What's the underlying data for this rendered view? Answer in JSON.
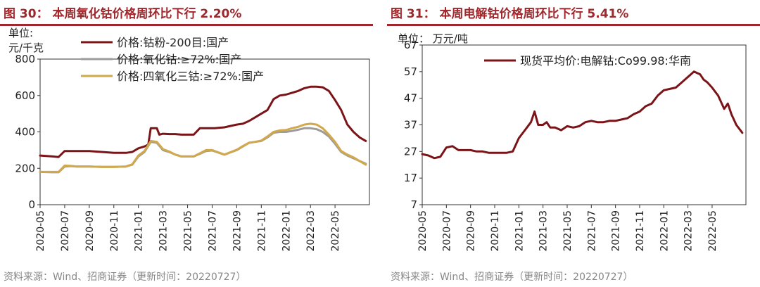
{
  "charts": [
    {
      "title": "图 30：  本周氧化钴价格周环比下行 2.20%",
      "source": "资料来源：Wind、招商证券（更新时间：20220727）"
    },
    {
      "title": "图 31：  本周电解钴价格周环比下行 5.41%",
      "source": "资料来源：Wind、招商证券（更新时间：20220727）"
    }
  ],
  "chart_data": [
    {
      "type": "line",
      "ylabel": "单位:\n元/千克",
      "ylim": [
        0,
        800
      ],
      "yticks": [
        0,
        200,
        400,
        600,
        800
      ],
      "x_tick_labels": [
        "2020-05",
        "2020-07",
        "2020-09",
        "2020-11",
        "2021-01",
        "2021-03",
        "2021-05",
        "2021-07",
        "2021-09",
        "2021-11",
        "2022-01",
        "2022-03",
        "2022-05"
      ],
      "xlim_months": [
        0,
        26.8
      ],
      "legend_position": "top-left",
      "colors": [
        "#7b1418",
        "#9c9c9c",
        "#d1a84a"
      ],
      "series": [
        {
          "name": "价格:钴粉-200目:国产",
          "x": [
            0,
            1,
            1.5,
            2,
            2.5,
            3,
            4,
            5,
            6,
            7,
            7.5,
            8,
            8.5,
            8.8,
            9,
            9.5,
            9.7,
            10,
            10.5,
            11,
            11.5,
            12,
            12.5,
            13,
            13.5,
            14,
            14.2,
            15,
            16,
            16.5,
            17,
            17.5,
            18,
            18.5,
            19,
            19.5,
            20,
            20.5,
            21,
            21.5,
            22,
            22.5,
            23,
            23.5,
            24,
            24.5,
            25,
            25.5,
            26,
            26.5
          ],
          "values": [
            270,
            265,
            262,
            295,
            295,
            295,
            295,
            290,
            285,
            285,
            290,
            310,
            320,
            330,
            420,
            420,
            385,
            390,
            388,
            388,
            385,
            385,
            385,
            420,
            420,
            420,
            420,
            425,
            440,
            445,
            460,
            480,
            500,
            520,
            580,
            600,
            605,
            615,
            625,
            640,
            648,
            648,
            645,
            625,
            575,
            520,
            440,
            400,
            370,
            350
          ]
        },
        {
          "name": "价格:氧化钴:≥72%:国产",
          "x": [
            0,
            1,
            1.5,
            2,
            2.5,
            3,
            4,
            5,
            6,
            7,
            7.5,
            8,
            8.5,
            9,
            9.5,
            10,
            10.5,
            11,
            11.5,
            12,
            12.5,
            13,
            13.5,
            14,
            15,
            16,
            16.5,
            17,
            17.5,
            18,
            18.5,
            19,
            19.5,
            20,
            20.5,
            21,
            21.5,
            22,
            22.5,
            23,
            23.5,
            24,
            24.5,
            25,
            25.5,
            26,
            26.5
          ],
          "values": [
            180,
            178,
            178,
            210,
            212,
            210,
            210,
            208,
            208,
            210,
            220,
            265,
            290,
            345,
            340,
            300,
            290,
            275,
            265,
            265,
            265,
            280,
            295,
            298,
            275,
            300,
            320,
            340,
            345,
            350,
            370,
            395,
            400,
            400,
            405,
            412,
            420,
            420,
            415,
            400,
            375,
            335,
            290,
            270,
            255,
            240,
            225
          ]
        },
        {
          "name": "价格:四氧化三钴:≥72%:国产",
          "x": [
            0,
            1,
            1.5,
            2,
            2.5,
            3,
            4,
            5,
            6,
            7,
            7.5,
            8,
            8.5,
            9,
            9.5,
            10,
            10.5,
            11,
            11.5,
            12,
            12.5,
            13,
            13.5,
            14,
            15,
            16,
            16.5,
            17,
            17.5,
            18,
            18.5,
            19,
            19.5,
            20,
            20.5,
            21,
            21.5,
            22,
            22.5,
            23,
            23.5,
            24,
            24.5,
            25,
            25.5,
            26,
            26.5
          ],
          "values": [
            180,
            180,
            180,
            215,
            213,
            210,
            210,
            208,
            208,
            210,
            222,
            270,
            295,
            350,
            345,
            305,
            292,
            275,
            265,
            265,
            265,
            282,
            300,
            300,
            275,
            302,
            322,
            340,
            345,
            352,
            375,
            400,
            408,
            410,
            420,
            428,
            440,
            445,
            440,
            420,
            385,
            345,
            295,
            275,
            260,
            240,
            220
          ]
        }
      ]
    },
    {
      "type": "line",
      "ylabel": "单位： 万元/吨",
      "ylim": [
        7,
        67
      ],
      "yticks": [
        7,
        17,
        27,
        37,
        47,
        57,
        67
      ],
      "x_tick_labels": [
        "2020-05",
        "2020-07",
        "2020-09",
        "2020-11",
        "2021-01",
        "2021-03",
        "2021-05",
        "2021-07",
        "2021-09",
        "2021-11",
        "2022-01",
        "2022-03",
        "2022-05"
      ],
      "xlim_months": [
        0,
        26.8
      ],
      "legend_position": "top-right",
      "colors": [
        "#7b1418"
      ],
      "series": [
        {
          "name": "现货平均价:电解钴:Co99.98:华南",
          "x": [
            0,
            0.5,
            1,
            1.5,
            2,
            2.5,
            3,
            3.5,
            4,
            4.5,
            5,
            5.5,
            6,
            6.5,
            7,
            7.5,
            8,
            8.5,
            9,
            9.3,
            9.6,
            10,
            10.3,
            10.6,
            11,
            11.5,
            12,
            12.5,
            13,
            13.5,
            14,
            14.5,
            15,
            15.5,
            16,
            16.5,
            17,
            17.5,
            18,
            18.5,
            19,
            19.5,
            20,
            20.5,
            21,
            21.5,
            22,
            22.5,
            23,
            23.3,
            23.6,
            24,
            24.5,
            25,
            25.3,
            25.6,
            26,
            26.5
          ],
          "values": [
            26,
            25.5,
            24.5,
            25,
            28.5,
            29,
            27.5,
            27.5,
            27.5,
            27,
            27,
            26.5,
            26.5,
            26.5,
            26.5,
            27,
            32,
            35,
            38,
            42,
            37,
            37,
            38,
            36,
            36,
            35,
            36.5,
            36,
            36.5,
            38,
            38.5,
            38,
            38,
            38.5,
            38.5,
            39,
            39.5,
            41,
            42,
            44,
            45,
            48,
            50,
            50.5,
            51,
            53,
            55,
            57,
            56,
            54,
            53,
            51,
            48,
            43,
            45,
            41,
            37,
            34
          ]
        }
      ]
    }
  ]
}
